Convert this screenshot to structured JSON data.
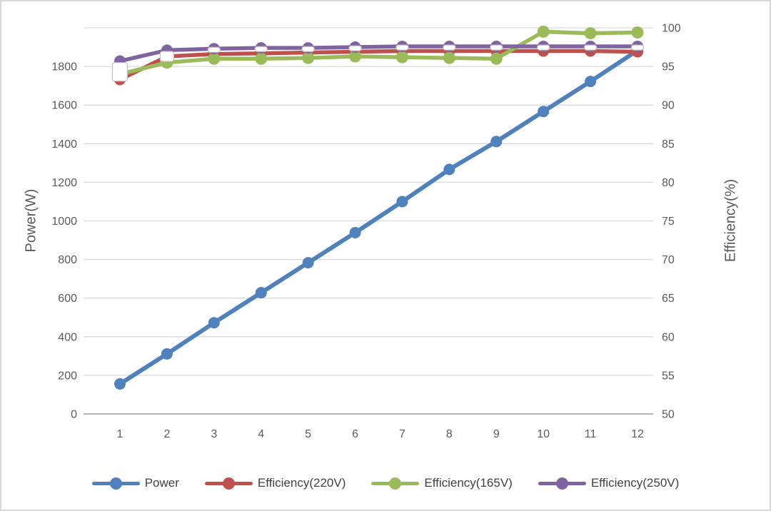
{
  "chart_data": {
    "type": "line",
    "title": "",
    "xlabel": "",
    "ylabel_left": "Power(W)",
    "ylabel_right": "Efficiency(%)",
    "x": [
      1,
      2,
      3,
      4,
      5,
      6,
      7,
      8,
      9,
      10,
      11,
      12
    ],
    "left_axis": {
      "min": 0,
      "max": 1800,
      "step": 200,
      "ticks": [
        0,
        200,
        400,
        600,
        800,
        1000,
        1200,
        1400,
        1600,
        1800
      ]
    },
    "right_axis": {
      "min": 50,
      "max": 100,
      "step": 5,
      "ticks": [
        50,
        55,
        60,
        65,
        70,
        75,
        80,
        85,
        90,
        95,
        100
      ]
    },
    "grid": "horizontal",
    "legend_position": "bottom",
    "series": [
      {
        "name": "Power",
        "axis": "left",
        "color": "#4F81BD",
        "marker": "circle",
        "values": [
          140,
          280,
          425,
          565,
          705,
          845,
          990,
          1140,
          1270,
          1410,
          1550,
          1695
        ]
      },
      {
        "name": "Efficiency(220V)",
        "axis": "right",
        "color": "#C0504D",
        "marker": "circle",
        "values": [
          93.3,
          96.3,
          96.6,
          96.7,
          96.8,
          96.9,
          97.0,
          97.0,
          97.0,
          97.0,
          97.0,
          96.9
        ]
      },
      {
        "name": "Efficiency(165V)",
        "axis": "right",
        "color": "#9BBB59",
        "marker": "circle",
        "values": [
          94.0,
          95.5,
          96.0,
          96.0,
          96.1,
          96.3,
          96.2,
          96.1,
          96.0,
          99.5,
          99.3,
          99.4
        ]
      },
      {
        "name": "Efficiency(250V)",
        "axis": "right",
        "color": "#8064A2",
        "marker": "circle",
        "values": [
          95.7,
          97.1,
          97.3,
          97.4,
          97.4,
          97.5,
          97.6,
          97.6,
          97.6,
          97.6,
          97.6,
          97.6
        ]
      }
    ],
    "overlay_markers": {
      "note": "white square/dash markers without legend entry, riding the Efficiency(250V) line",
      "axis": "right",
      "fill": "#ffffff",
      "border": "#bfbfbf",
      "values": [
        94.3,
        96.3,
        97.15,
        97.25,
        97.25,
        97.35,
        97.45,
        97.45,
        97.45,
        97.45,
        97.45,
        97.45
      ],
      "sizes": [
        [
          21,
          26
        ],
        [
          19,
          14
        ],
        [
          17,
          7
        ],
        [
          17,
          7
        ],
        [
          17,
          7
        ],
        [
          17,
          7
        ],
        [
          17,
          7
        ],
        [
          17,
          7
        ],
        [
          17,
          7
        ],
        [
          17,
          7
        ],
        [
          17,
          7
        ],
        [
          17,
          7
        ]
      ]
    },
    "colors": {
      "gridline": "#d9d9d9",
      "axis_line": "#b3b3b3",
      "tick_text": "#595959",
      "legend_text": "#404040"
    }
  }
}
